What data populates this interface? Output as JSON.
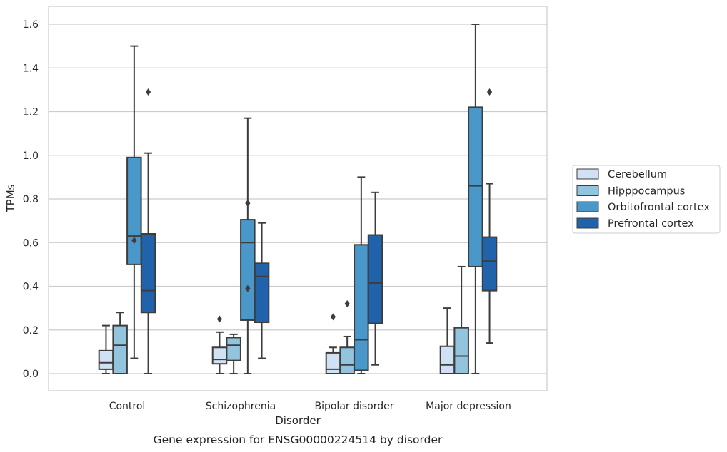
{
  "chart_data": {
    "type": "box",
    "caption": "Gene expression for ENSG00000224514 by disorder",
    "xlabel": "Disorder",
    "ylabel": "TPMs",
    "ylim": [
      -0.08,
      1.68
    ],
    "yticks": [
      "0.0",
      "0.2",
      "0.4",
      "0.6",
      "0.8",
      "1.0",
      "1.2",
      "1.4",
      "1.6"
    ],
    "grid": true,
    "legend_position": "right",
    "categories": [
      "Control",
      "Schizophrenia",
      "Bipolar disorder",
      "Major depression"
    ],
    "series": [
      {
        "name": "Cerebellum",
        "color": "#cfe1f2",
        "boxes": [
          {
            "q1": 0.02,
            "median": 0.05,
            "q3": 0.105,
            "whisker_low": 0.0,
            "whisker_high": 0.22,
            "outliers": []
          },
          {
            "q1": 0.045,
            "median": 0.065,
            "q3": 0.12,
            "whisker_low": 0.0,
            "whisker_high": 0.19,
            "outliers": [
              0.25
            ]
          },
          {
            "q1": 0.0,
            "median": 0.02,
            "q3": 0.095,
            "whisker_low": 0.0,
            "whisker_high": 0.12,
            "outliers": [
              0.26
            ]
          },
          {
            "q1": 0.0,
            "median": 0.04,
            "q3": 0.125,
            "whisker_low": 0.0,
            "whisker_high": 0.3,
            "outliers": []
          }
        ]
      },
      {
        "name": "Hipppocampus",
        "color": "#93c4de",
        "boxes": [
          {
            "q1": 0.0,
            "median": 0.13,
            "q3": 0.22,
            "whisker_low": 0.0,
            "whisker_high": 0.28,
            "outliers": []
          },
          {
            "q1": 0.06,
            "median": 0.13,
            "q3": 0.165,
            "whisker_low": 0.0,
            "whisker_high": 0.18,
            "outliers": []
          },
          {
            "q1": 0.0,
            "median": 0.04,
            "q3": 0.12,
            "whisker_low": 0.0,
            "whisker_high": 0.17,
            "outliers": [
              0.32
            ]
          },
          {
            "q1": 0.0,
            "median": 0.08,
            "q3": 0.21,
            "whisker_low": 0.0,
            "whisker_high": 0.49,
            "outliers": []
          }
        ]
      },
      {
        "name": "Orbitofrontal cortex",
        "color": "#4a98c9",
        "boxes": [
          {
            "q1": 0.5,
            "median": 0.63,
            "q3": 0.99,
            "whisker_low": 0.07,
            "whisker_high": 1.5,
            "outliers": [
              0.61
            ]
          },
          {
            "q1": 0.245,
            "median": 0.6,
            "q3": 0.705,
            "whisker_low": 0.0,
            "whisker_high": 1.17,
            "outliers": [
              0.78,
              0.39
            ]
          },
          {
            "q1": 0.015,
            "median": 0.155,
            "q3": 0.59,
            "whisker_low": 0.0,
            "whisker_high": 0.9,
            "outliers": []
          },
          {
            "q1": 0.49,
            "median": 0.86,
            "q3": 1.22,
            "whisker_low": 0.0,
            "whisker_high": 1.6,
            "outliers": []
          }
        ]
      },
      {
        "name": "Prefrontal cortex",
        "color": "#2163aa",
        "boxes": [
          {
            "q1": 0.28,
            "median": 0.38,
            "q3": 0.64,
            "whisker_low": 0.0,
            "whisker_high": 1.01,
            "outliers": [
              1.29
            ]
          },
          {
            "q1": 0.235,
            "median": 0.445,
            "q3": 0.505,
            "whisker_low": 0.07,
            "whisker_high": 0.69,
            "outliers": []
          },
          {
            "q1": 0.23,
            "median": 0.415,
            "q3": 0.635,
            "whisker_low": 0.04,
            "whisker_high": 0.83,
            "outliers": []
          },
          {
            "q1": 0.38,
            "median": 0.515,
            "q3": 0.625,
            "whisker_low": 0.14,
            "whisker_high": 0.87,
            "outliers": [
              1.29
            ]
          }
        ]
      }
    ]
  }
}
